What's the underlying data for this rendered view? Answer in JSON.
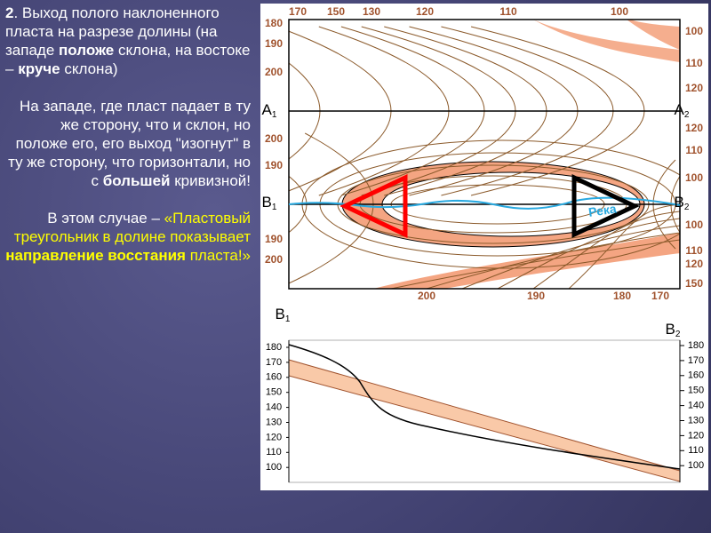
{
  "text": {
    "paragraphs": [
      {
        "align": "left",
        "runs": [
          {
            "text": "2",
            "bold": true
          },
          {
            "text": ". Выход полого наклоненного пласта на разрезе долины (на западе "
          },
          {
            "text": "положе",
            "bold": true
          },
          {
            "text": " склона, на востоке – "
          },
          {
            "text": "круче",
            "bold": true
          },
          {
            "text": " склона)"
          }
        ]
      },
      {
        "align": "right",
        "runs": [
          {
            "text": "На западе, где пласт падает в ту же сторону, что и склон, но положе его, его выход \"изогнут\" в ту же сторону, что горизонтали, но с "
          },
          {
            "text": "большей",
            "bold": true
          },
          {
            "text": " кривизной!"
          }
        ]
      },
      {
        "align": "right",
        "runs": [
          {
            "text": "В этом случае – "
          },
          {
            "text": "«Пластовый треугольник в долине показывает ",
            "color": "#ffff00"
          },
          {
            "text": "направление восстания",
            "bold": true,
            "color": "#ffff00"
          },
          {
            "text": " пласта!»",
            "color": "#ffff00"
          }
        ]
      }
    ]
  },
  "map": {
    "top_labels": [
      "170",
      "150",
      "130",
      "120",
      "110",
      "100"
    ],
    "left_labels": [
      "180",
      "190",
      "200",
      "200",
      "190",
      "190",
      "200"
    ],
    "right_labels": [
      "100",
      "110",
      "120",
      "120",
      "110",
      "100",
      "100",
      "110",
      "120",
      "150"
    ],
    "bottom_labels": [
      "200",
      "190",
      "180",
      "170"
    ],
    "points": [
      {
        "letter": "A",
        "sub": "1"
      },
      {
        "letter": "A",
        "sub": "2"
      },
      {
        "letter": "B",
        "sub": "1"
      },
      {
        "letter": "B",
        "sub": "2"
      }
    ],
    "river": "Река"
  },
  "profile": {
    "left_point": {
      "letter": "B",
      "sub": "1"
    },
    "right_point": {
      "letter": "B",
      "sub": "2"
    },
    "left_ticks": [
      180,
      170,
      160,
      150,
      140,
      130,
      120,
      110,
      100
    ],
    "right_ticks": [
      180,
      170,
      160,
      150,
      140,
      130,
      120,
      110,
      100
    ]
  }
}
